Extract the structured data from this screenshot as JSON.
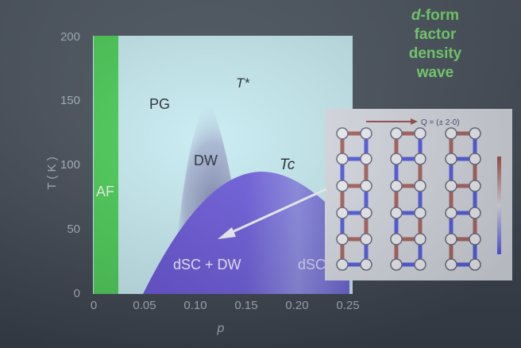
{
  "slide_title": {
    "lines": [
      "-form",
      "factor",
      "density",
      "wave"
    ],
    "italic_prefix": "d"
  },
  "phase_diagram": {
    "y_axis": {
      "label": "T ( K )",
      "ticks": [
        "0",
        "50",
        "100",
        "150",
        "200"
      ]
    },
    "x_axis": {
      "label": "p",
      "ticks": [
        "0",
        "0.05",
        "0.10",
        "0.15",
        "0.20",
        "0.25"
      ]
    },
    "regions": {
      "af": "AF",
      "pg": "PG",
      "dw": "DW",
      "dsc_dw": "dSC + DW",
      "dsc": "dSC",
      "t_star": "T*",
      "tc": "Tc"
    },
    "colors": {
      "background": "#c8ecf2",
      "af": "#4fce5a",
      "dome": "#6a5ad8",
      "dw_shade": "#8a8fb8",
      "side_title": "#7fe07a"
    }
  },
  "inset": {
    "wavevector_label": "Q = (± 2·0)",
    "colors": {
      "bond_red": "#b06a66",
      "bond_blue": "#5a63e6",
      "node": "#f4f6fb"
    }
  }
}
